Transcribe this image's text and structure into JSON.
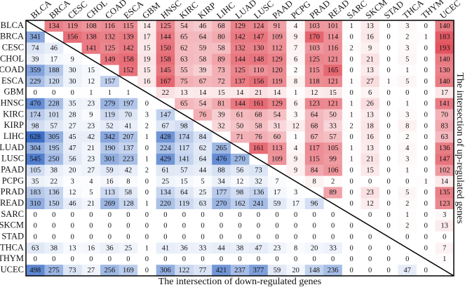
{
  "chart_data": {
    "type": "heatmap",
    "categories": [
      "BLCA",
      "BRCA",
      "CESC",
      "CHOL",
      "COAD",
      "ESCA",
      "GBM",
      "HNSC",
      "KIRC",
      "KIRP",
      "LIHC",
      "LUAD",
      "LUSC",
      "PAAD",
      "PCPG",
      "PRAD",
      "READ",
      "SARC",
      "SKCM",
      "STAD",
      "THCA",
      "THYM",
      "UCEC"
    ],
    "xlabel": "The intersection of down-regulated genes",
    "ylabel_right": "The intersection of up-regulated genes",
    "upper_color": "#e3545f",
    "lower_color": "#3d6fc8",
    "values": [
      [
        null,
        134,
        119,
        108,
        116,
        115,
        14,
        125,
        54,
        46,
        68,
        129,
        124,
        91,
        4,
        103,
        101,
        1,
        13,
        0,
        3,
        0,
        140
      ],
      [
        341,
        null,
        156,
        138,
        132,
        139,
        17,
        144,
        65,
        64,
        80,
        142,
        147,
        109,
        9,
        170,
        114,
        0,
        16,
        0,
        2,
        1,
        183
      ],
      [
        74,
        46,
        null,
        141,
        125,
        142,
        15,
        150,
        62,
        59,
        58,
        132,
        130,
        112,
        7,
        103,
        116,
        2,
        9,
        0,
        3,
        0,
        193
      ],
      [
        39,
        17,
        9,
        null,
        149,
        158,
        19,
        158,
        63,
        58,
        89,
        144,
        148,
        129,
        6,
        125,
        121,
        0,
        21,
        0,
        5,
        0,
        140
      ],
      [
        359,
        188,
        30,
        15,
        null,
        152,
        15,
        145,
        55,
        39,
        73,
        125,
        110,
        120,
        2,
        115,
        165,
        0,
        13,
        0,
        1,
        0,
        130
      ],
      [
        229,
        120,
        30,
        12,
        157,
        null,
        16,
        167,
        75,
        67,
        72,
        137,
        156,
        119,
        8,
        118,
        121,
        1,
        27,
        1,
        5,
        0,
        140
      ],
      [
        0,
        0,
        0,
        1,
        1,
        1,
        null,
        22,
        13,
        14,
        15,
        14,
        21,
        14,
        1,
        12,
        15,
        0,
        6,
        0,
        0,
        0,
        17
      ],
      [
        470,
        228,
        35,
        23,
        279,
        197,
        0,
        null,
        65,
        54,
        81,
        144,
        161,
        129,
        6,
        123,
        121,
        1,
        26,
        0,
        1,
        0,
        141
      ],
      [
        174,
        101,
        28,
        9,
        119,
        70,
        3,
        147,
        null,
        76,
        39,
        61,
        68,
        54,
        3,
        64,
        50,
        1,
        13,
        0,
        3,
        0,
        70
      ],
      [
        98,
        57,
        27,
        23,
        52,
        41,
        2,
        67,
        98,
        null,
        32,
        50,
        58,
        31,
        12,
        68,
        33,
        2,
        18,
        0,
        8,
        0,
        83
      ],
      [
        628,
        305,
        45,
        42,
        342,
        207,
        1,
        428,
        174,
        84,
        null,
        71,
        76,
        60,
        1,
        67,
        57,
        0,
        16,
        0,
        2,
        0,
        63
      ],
      [
        304,
        195,
        47,
        21,
        190,
        137,
        0,
        224,
        117,
        62,
        265,
        null,
        161,
        113,
        4,
        117,
        105,
        1,
        13,
        0,
        4,
        0,
        136
      ],
      [
        545,
        250,
        56,
        23,
        301,
        223,
        1,
        429,
        141,
        64,
        476,
        270,
        null,
        109,
        9,
        115,
        99,
        1,
        21,
        0,
        3,
        0,
        147
      ],
      [
        105,
        38,
        20,
        27,
        59,
        42,
        2,
        61,
        57,
        44,
        88,
        56,
        73,
        null,
        9,
        84,
        106,
        0,
        15,
        0,
        1,
        0,
        102
      ],
      [
        35,
        22,
        3,
        4,
        16,
        8,
        0,
        25,
        15,
        5,
        34,
        12,
        32,
        7,
        null,
        8,
        2,
        0,
        0,
        0,
        0,
        1,
        14
      ],
      [
        183,
        136,
        12,
        5,
        113,
        58,
        0,
        134,
        64,
        25,
        177,
        98,
        136,
        17,
        3,
        null,
        89,
        0,
        23,
        0,
        5,
        0,
        135
      ],
      [
        310,
        150,
        46,
        21,
        269,
        128,
        1,
        220,
        119,
        63,
        270,
        162,
        241,
        59,
        17,
        96,
        null,
        0,
        12,
        0,
        2,
        0,
        123
      ],
      [
        0,
        0,
        0,
        0,
        0,
        0,
        0,
        0,
        0,
        0,
        0,
        0,
        0,
        0,
        0,
        0,
        0,
        null,
        0,
        0,
        1,
        0,
        3
      ],
      [
        0,
        0,
        0,
        0,
        0,
        0,
        0,
        0,
        0,
        0,
        0,
        0,
        0,
        0,
        0,
        0,
        0,
        0,
        null,
        0,
        2,
        0,
        13
      ],
      [
        0,
        0,
        0,
        0,
        0,
        0,
        0,
        0,
        0,
        0,
        0,
        0,
        0,
        0,
        0,
        0,
        0,
        0,
        0,
        null,
        0,
        0,
        0
      ],
      [
        63,
        38,
        13,
        16,
        36,
        25,
        1,
        41,
        36,
        33,
        44,
        38,
        47,
        23,
        8,
        20,
        33,
        0,
        0,
        0,
        null,
        0,
        7
      ],
      [
        0,
        0,
        0,
        0,
        0,
        0,
        0,
        0,
        0,
        0,
        0,
        0,
        0,
        0,
        0,
        0,
        0,
        0,
        0,
        0,
        0,
        null,
        1
      ],
      [
        498,
        275,
        73,
        27,
        256,
        169,
        0,
        306,
        122,
        77,
        421,
        237,
        377,
        59,
        20,
        148,
        236,
        0,
        0,
        0,
        47,
        0,
        null
      ]
    ]
  }
}
